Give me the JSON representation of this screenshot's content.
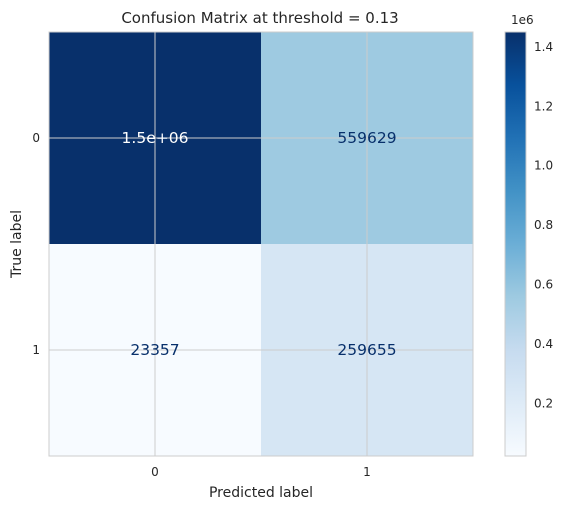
{
  "chart_data": {
    "type": "heatmap",
    "title": "Confusion Matrix at threshold = 0.13",
    "xlabel": "Predicted label",
    "ylabel": "True label",
    "x_categories": [
      "0",
      "1"
    ],
    "y_categories": [
      "0",
      "1"
    ],
    "values": [
      [
        1450000,
        559629
      ],
      [
        23357,
        259655
      ]
    ],
    "cell_labels": [
      [
        "1.5e+06",
        "559629"
      ],
      [
        "23357",
        "259655"
      ]
    ],
    "colormap": "Blues",
    "grid": true,
    "colorbar": {
      "range": [
        23357,
        1450000
      ],
      "ticks": [
        0.2,
        0.4,
        0.6,
        0.8,
        1.0,
        1.2,
        1.4
      ],
      "tick_labels": [
        "0.2",
        "0.4",
        "0.6",
        "0.8",
        "1.0",
        "1.2",
        "1.4"
      ],
      "scale_label": "1e6",
      "location": "right"
    },
    "colors": {
      "text_dark": "#08306b",
      "text_light": "#ffffff",
      "grid": "#cccccc",
      "border": "#cccccc"
    }
  }
}
